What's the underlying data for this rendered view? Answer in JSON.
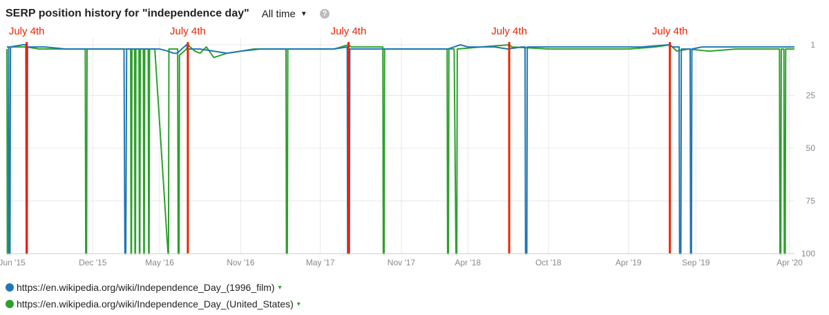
{
  "header": {
    "title": "SERP position history for \"independence day\"",
    "range_label": "All time",
    "help_symbol": "?"
  },
  "chart_data": {
    "type": "line",
    "title": "SERP position history for \"independence day\"",
    "x_range": [
      "2015-05-20",
      "2020-04-12"
    ],
    "y_range": [
      1,
      100
    ],
    "y_reversed": true,
    "y_ticks": [
      1,
      25,
      50,
      75,
      100
    ],
    "x_ticks": [
      {
        "date": "2015-06-01",
        "label": "Jun '15"
      },
      {
        "date": "2015-12-01",
        "label": "Dec '15"
      },
      {
        "date": "2016-05-01",
        "label": "May '16"
      },
      {
        "date": "2016-11-01",
        "label": "Nov '16"
      },
      {
        "date": "2017-05-01",
        "label": "May '17"
      },
      {
        "date": "2017-11-01",
        "label": "Nov '17"
      },
      {
        "date": "2018-04-01",
        "label": "Apr '18"
      },
      {
        "date": "2018-10-01",
        "label": "Oct '18"
      },
      {
        "date": "2019-04-01",
        "label": "Apr '19"
      },
      {
        "date": "2019-09-01",
        "label": "Sep '19"
      },
      {
        "date": "2020-04-01",
        "label": "Apr '20"
      }
    ],
    "annotations": [
      {
        "date": "2015-07-04",
        "label": "July 4th"
      },
      {
        "date": "2016-07-04",
        "label": "July 4th"
      },
      {
        "date": "2017-07-04",
        "label": "July 4th"
      },
      {
        "date": "2018-07-04",
        "label": "July 4th"
      },
      {
        "date": "2019-07-04",
        "label": "July 4th"
      }
    ],
    "grid": true,
    "legend_position": "bottom-left",
    "series": [
      {
        "name": "https://en.wikipedia.org/wiki/Independence_Day_(1996_film)",
        "color": "#1f77b4",
        "points": [
          [
            "2015-05-20",
            2
          ],
          [
            "2015-05-24",
            2
          ],
          [
            "2015-05-25",
            100
          ],
          [
            "2015-05-27",
            100
          ],
          [
            "2015-05-28",
            2
          ],
          [
            "2015-06-25",
            1
          ],
          [
            "2015-07-02",
            1
          ],
          [
            "2015-07-03",
            100
          ],
          [
            "2015-07-05",
            100
          ],
          [
            "2015-07-06",
            2
          ],
          [
            "2015-08-15",
            2
          ],
          [
            "2015-10-01",
            3
          ],
          [
            "2015-12-15",
            3
          ],
          [
            "2016-01-20",
            3
          ],
          [
            "2016-02-10",
            3
          ],
          [
            "2016-02-12",
            100
          ],
          [
            "2016-02-14",
            100
          ],
          [
            "2016-02-16",
            3
          ],
          [
            "2016-04-01",
            3
          ],
          [
            "2016-05-01",
            3
          ],
          [
            "2016-05-20",
            4
          ],
          [
            "2016-06-01",
            5
          ],
          [
            "2016-06-10",
            5
          ],
          [
            "2016-06-20",
            3
          ],
          [
            "2016-07-01",
            1
          ],
          [
            "2016-07-05",
            3
          ],
          [
            "2016-08-01",
            3
          ],
          [
            "2016-09-01",
            4
          ],
          [
            "2016-10-01",
            5
          ],
          [
            "2016-11-01",
            4
          ],
          [
            "2016-12-15",
            3
          ],
          [
            "2017-03-01",
            3
          ],
          [
            "2017-06-01",
            3
          ],
          [
            "2017-07-01",
            2
          ],
          [
            "2017-07-02",
            100
          ],
          [
            "2017-07-06",
            100
          ],
          [
            "2017-07-07",
            3
          ],
          [
            "2017-09-01",
            3
          ],
          [
            "2017-12-01",
            3
          ],
          [
            "2018-02-15",
            3
          ],
          [
            "2018-03-01",
            2
          ],
          [
            "2018-03-15",
            1
          ],
          [
            "2018-04-01",
            2
          ],
          [
            "2018-06-01",
            2
          ],
          [
            "2018-07-01",
            3
          ],
          [
            "2018-08-01",
            2
          ],
          [
            "2018-08-09",
            2
          ],
          [
            "2018-08-10",
            100
          ],
          [
            "2018-08-13",
            100
          ],
          [
            "2018-08-14",
            2
          ],
          [
            "2018-11-01",
            2
          ],
          [
            "2019-03-01",
            2
          ],
          [
            "2019-05-01",
            2
          ],
          [
            "2019-07-01",
            1
          ],
          [
            "2019-07-10",
            2
          ],
          [
            "2019-07-25",
            2
          ],
          [
            "2019-07-26",
            100
          ],
          [
            "2019-07-29",
            100
          ],
          [
            "2019-07-30",
            3
          ],
          [
            "2019-08-19",
            3
          ],
          [
            "2019-08-20",
            100
          ],
          [
            "2019-08-22",
            100
          ],
          [
            "2019-08-23",
            3
          ],
          [
            "2019-09-15",
            2
          ],
          [
            "2019-12-01",
            2
          ],
          [
            "2020-01-15",
            2
          ],
          [
            "2020-04-12",
            2
          ]
        ]
      },
      {
        "name": "https://en.wikipedia.org/wiki/Independence_Day_(United_States)",
        "color": "#2ca02c",
        "points": [
          [
            "2015-05-20",
            3
          ],
          [
            "2015-05-21",
            100
          ],
          [
            "2015-05-23",
            100
          ],
          [
            "2015-05-24",
            2
          ],
          [
            "2015-06-15",
            2
          ],
          [
            "2015-07-04",
            2
          ],
          [
            "2015-08-01",
            3
          ],
          [
            "2015-10-01",
            3
          ],
          [
            "2015-11-14",
            3
          ],
          [
            "2015-11-15",
            100
          ],
          [
            "2015-11-17",
            100
          ],
          [
            "2015-11-18",
            3
          ],
          [
            "2016-01-01",
            3
          ],
          [
            "2016-02-10",
            3
          ],
          [
            "2016-02-25",
            3
          ],
          [
            "2016-02-26",
            100
          ],
          [
            "2016-02-27",
            100
          ],
          [
            "2016-02-28",
            3
          ],
          [
            "2016-03-05",
            3
          ],
          [
            "2016-03-06",
            100
          ],
          [
            "2016-03-07",
            100
          ],
          [
            "2016-03-08",
            3
          ],
          [
            "2016-03-15",
            3
          ],
          [
            "2016-03-16",
            100
          ],
          [
            "2016-03-17",
            100
          ],
          [
            "2016-03-18",
            3
          ],
          [
            "2016-03-25",
            3
          ],
          [
            "2016-03-26",
            100
          ],
          [
            "2016-03-27",
            100
          ],
          [
            "2016-03-28",
            3
          ],
          [
            "2016-04-05",
            3
          ],
          [
            "2016-04-06",
            100
          ],
          [
            "2016-04-07",
            100
          ],
          [
            "2016-04-08",
            3
          ],
          [
            "2016-04-20",
            3
          ],
          [
            "2016-05-20",
            100
          ],
          [
            "2016-05-21",
            100
          ],
          [
            "2016-05-22",
            3
          ],
          [
            "2016-06-11",
            3
          ],
          [
            "2016-06-12",
            100
          ],
          [
            "2016-06-14",
            100
          ],
          [
            "2016-06-15",
            6
          ],
          [
            "2016-07-01",
            3
          ],
          [
            "2016-07-04",
            1
          ],
          [
            "2016-07-20",
            4
          ],
          [
            "2016-08-01",
            5
          ],
          [
            "2016-08-15",
            2
          ],
          [
            "2016-09-01",
            7
          ],
          [
            "2016-10-01",
            5
          ],
          [
            "2016-11-01",
            4
          ],
          [
            "2016-12-01",
            3
          ],
          [
            "2017-01-01",
            3
          ],
          [
            "2017-02-01",
            3
          ],
          [
            "2017-02-12",
            3
          ],
          [
            "2017-02-13",
            100
          ],
          [
            "2017-02-15",
            100
          ],
          [
            "2017-02-16",
            3
          ],
          [
            "2017-04-01",
            3
          ],
          [
            "2017-05-01",
            3
          ],
          [
            "2017-06-01",
            3
          ],
          [
            "2017-07-04",
            1
          ],
          [
            "2017-07-10",
            2
          ],
          [
            "2017-09-20",
            2
          ],
          [
            "2017-09-21",
            100
          ],
          [
            "2017-09-23",
            100
          ],
          [
            "2017-09-24",
            3
          ],
          [
            "2017-12-01",
            3
          ],
          [
            "2018-02-13",
            3
          ],
          [
            "2018-02-14",
            100
          ],
          [
            "2018-02-16",
            100
          ],
          [
            "2018-02-17",
            3
          ],
          [
            "2018-03-01",
            3
          ],
          [
            "2018-03-05",
            100
          ],
          [
            "2018-03-07",
            100
          ],
          [
            "2018-03-08",
            3
          ],
          [
            "2018-05-01",
            2
          ],
          [
            "2018-07-04",
            1
          ],
          [
            "2018-07-10",
            2
          ],
          [
            "2018-10-01",
            3
          ],
          [
            "2019-01-01",
            3
          ],
          [
            "2019-04-01",
            3
          ],
          [
            "2019-06-01",
            2
          ],
          [
            "2019-07-04",
            1
          ],
          [
            "2019-07-20",
            4
          ],
          [
            "2019-08-15",
            3
          ],
          [
            "2019-10-01",
            4
          ],
          [
            "2019-12-01",
            3
          ],
          [
            "2020-03-09",
            3
          ],
          [
            "2020-03-10",
            100
          ],
          [
            "2020-03-12",
            100
          ],
          [
            "2020-03-13",
            3
          ],
          [
            "2020-03-19",
            3
          ],
          [
            "2020-03-20",
            100
          ],
          [
            "2020-03-22",
            100
          ],
          [
            "2020-03-23",
            3
          ],
          [
            "2020-04-12",
            3
          ]
        ]
      }
    ]
  },
  "legend": [
    {
      "label": "https://en.wikipedia.org/wiki/Independence_Day_(1996_film)",
      "color": "#1f77b4",
      "dropdown_symbol": "▾"
    },
    {
      "label": "https://en.wikipedia.org/wiki/Independence_Day_(United_States)",
      "color": "#2ca02c",
      "dropdown_symbol": "▾"
    }
  ],
  "colors": {
    "annotation": "#ee2200",
    "grid": "#e8e8e8",
    "axis_text": "#888888"
  }
}
